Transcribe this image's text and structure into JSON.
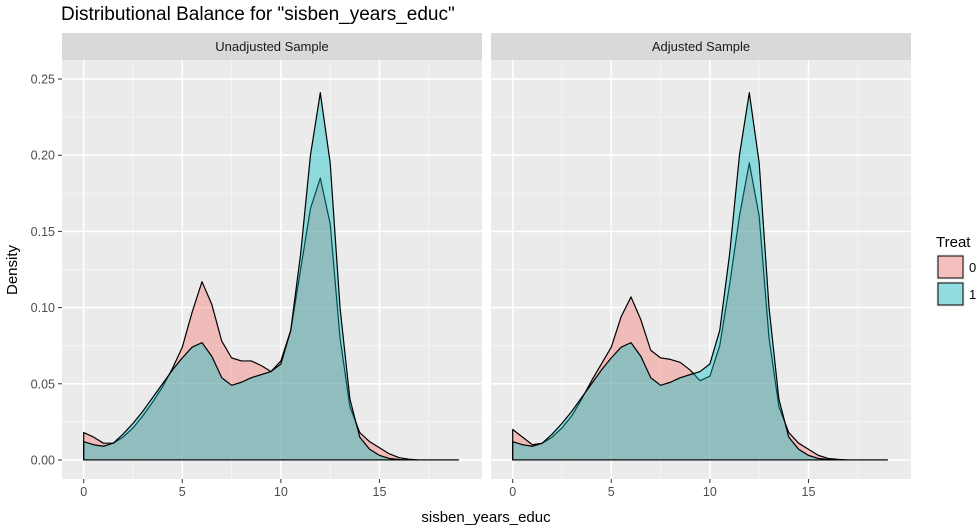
{
  "chart_data": {
    "type": "area",
    "title": "Distributional Balance for \"sisben_years_educ\"",
    "xlabel": "sisben_years_educ",
    "ylabel": "Density",
    "xlim": [
      -1.1,
      20.2
    ],
    "ylim": [
      -0.0125,
      0.2625
    ],
    "x_ticks": [
      "0",
      "5",
      "10",
      "15"
    ],
    "y_ticks": [
      "0.00",
      "0.05",
      "0.10",
      "0.15",
      "0.20",
      "0.25"
    ],
    "grid": true,
    "legend": {
      "title": "Treat",
      "placement": "right",
      "entries": [
        {
          "label": "0",
          "color": "#f8766d"
        },
        {
          "label": "1",
          "color": "#00bfc4"
        }
      ]
    },
    "panels": [
      {
        "label": "Unadjusted Sample",
        "series": [
          {
            "name": "0",
            "color": "#f8766d",
            "x": [
              0,
              0.5,
              1,
              1.5,
              2,
              2.5,
              3,
              3.5,
              4,
              4.5,
              5,
              5.5,
              6,
              6.5,
              7,
              7.5,
              8,
              8.5,
              9,
              9.5,
              10,
              10.5,
              11,
              11.5,
              12,
              12.5,
              13,
              13.5,
              14,
              14.5,
              15,
              15.5,
              16,
              16.5,
              17,
              17.5,
              18,
              18.5,
              19
            ],
            "y": [
              0.018,
              0.015,
              0.011,
              0.011,
              0.015,
              0.021,
              0.029,
              0.038,
              0.048,
              0.06,
              0.074,
              0.097,
              0.117,
              0.102,
              0.078,
              0.067,
              0.065,
              0.065,
              0.062,
              0.058,
              0.065,
              0.085,
              0.125,
              0.165,
              0.185,
              0.155,
              0.08,
              0.035,
              0.018,
              0.012,
              0.008,
              0.004,
              0.0015,
              0.0005,
              0,
              0,
              0,
              0,
              0
            ]
          },
          {
            "name": "1",
            "color": "#00bfc4",
            "x": [
              0,
              0.5,
              1,
              1.5,
              2,
              2.5,
              3,
              3.5,
              4,
              4.5,
              5,
              5.5,
              6,
              6.5,
              7,
              7.5,
              8,
              8.5,
              9,
              9.5,
              10,
              10.5,
              11,
              11.5,
              12,
              12.5,
              13,
              13.5,
              14,
              14.5,
              15,
              15.5,
              16,
              16.5,
              17,
              17.5,
              18,
              18.5,
              19
            ],
            "y": [
              0.012,
              0.01,
              0.009,
              0.011,
              0.017,
              0.024,
              0.032,
              0.041,
              0.05,
              0.059,
              0.067,
              0.074,
              0.077,
              0.068,
              0.054,
              0.049,
              0.051,
              0.054,
              0.056,
              0.058,
              0.063,
              0.085,
              0.135,
              0.2,
              0.241,
              0.195,
              0.1,
              0.04,
              0.015,
              0.007,
              0.003,
              0.001,
              0.0003,
              0,
              0,
              0,
              0,
              0,
              0
            ]
          }
        ]
      },
      {
        "label": "Adjusted Sample",
        "series": [
          {
            "name": "0",
            "color": "#f8766d",
            "x": [
              0,
              0.5,
              1,
              1.5,
              2,
              2.5,
              3,
              3.5,
              4,
              4.5,
              5,
              5.5,
              6,
              6.5,
              7,
              7.5,
              8,
              8.5,
              9,
              9.5,
              10,
              10.5,
              11,
              11.5,
              12,
              12.5,
              13,
              13.5,
              14,
              14.5,
              15,
              15.5,
              16,
              16.5,
              17,
              17.5,
              18,
              18.5,
              19
            ],
            "y": [
              0.02,
              0.015,
              0.01,
              0.011,
              0.015,
              0.021,
              0.029,
              0.04,
              0.052,
              0.063,
              0.074,
              0.094,
              0.107,
              0.092,
              0.072,
              0.067,
              0.066,
              0.064,
              0.059,
              0.052,
              0.055,
              0.075,
              0.115,
              0.16,
              0.195,
              0.16,
              0.08,
              0.035,
              0.018,
              0.011,
              0.007,
              0.003,
              0.001,
              0.0004,
              0,
              0,
              0,
              0,
              0
            ]
          },
          {
            "name": "1",
            "color": "#00bfc4",
            "x": [
              0,
              0.5,
              1,
              1.5,
              2,
              2.5,
              3,
              3.5,
              4,
              4.5,
              5,
              5.5,
              6,
              6.5,
              7,
              7.5,
              8,
              8.5,
              9,
              9.5,
              10,
              10.5,
              11,
              11.5,
              12,
              12.5,
              13,
              13.5,
              14,
              14.5,
              15,
              15.5,
              16,
              16.5,
              17,
              17.5,
              18,
              18.5,
              19
            ],
            "y": [
              0.012,
              0.01,
              0.009,
              0.011,
              0.017,
              0.024,
              0.032,
              0.041,
              0.05,
              0.059,
              0.067,
              0.074,
              0.077,
              0.068,
              0.054,
              0.049,
              0.051,
              0.054,
              0.056,
              0.058,
              0.063,
              0.085,
              0.135,
              0.2,
              0.241,
              0.195,
              0.1,
              0.04,
              0.015,
              0.007,
              0.003,
              0.001,
              0.0003,
              0,
              0,
              0,
              0,
              0,
              0
            ]
          }
        ]
      }
    ]
  }
}
